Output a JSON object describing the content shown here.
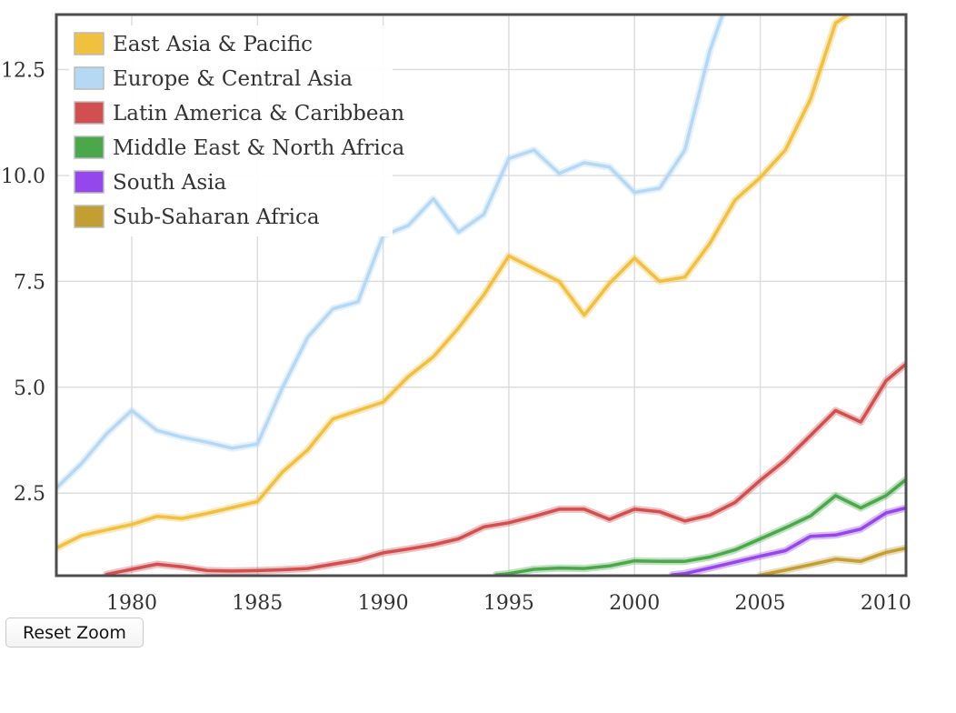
{
  "reset_zoom_label": "Reset Zoom",
  "chart_data": {
    "type": "line",
    "xlim": [
      1977,
      2010.8
    ],
    "ylim": [
      0.55,
      13.8
    ],
    "x_ticks": [
      1980,
      1985,
      1990,
      1995,
      2000,
      2005,
      2010
    ],
    "y_ticks": [
      2.5,
      5.0,
      7.5,
      10.0,
      12.5
    ],
    "y_tick_labels": [
      "2.5",
      "5.0",
      "7.5",
      "10.0",
      "12.5"
    ],
    "grid": true,
    "legend_position": "top-left",
    "series": [
      {
        "name": "East Asia & Pacific",
        "color": "#f1c03f",
        "points": [
          [
            1977,
            1.2
          ],
          [
            1978,
            1.5
          ],
          [
            1979,
            1.63
          ],
          [
            1980,
            1.76
          ],
          [
            1981,
            1.95
          ],
          [
            1982,
            1.9
          ],
          [
            1983,
            2.02
          ],
          [
            1984,
            2.16
          ],
          [
            1985,
            2.3
          ],
          [
            1986,
            3.0
          ],
          [
            1987,
            3.52
          ],
          [
            1988,
            4.25
          ],
          [
            1989,
            4.45
          ],
          [
            1990,
            4.65
          ],
          [
            1991,
            5.25
          ],
          [
            1992,
            5.72
          ],
          [
            1993,
            6.4
          ],
          [
            1994,
            7.18
          ],
          [
            1995,
            8.1
          ],
          [
            1996,
            7.8
          ],
          [
            1997,
            7.5
          ],
          [
            1998,
            6.7
          ],
          [
            1999,
            7.45
          ],
          [
            2000,
            8.05
          ],
          [
            2001,
            7.5
          ],
          [
            2002,
            7.6
          ],
          [
            2003,
            8.4
          ],
          [
            2004,
            9.42
          ],
          [
            2005,
            9.95
          ],
          [
            2006,
            10.6
          ],
          [
            2007,
            11.8
          ],
          [
            2008,
            13.6
          ],
          [
            2008.5,
            13.8
          ]
        ]
      },
      {
        "name": "Europe & Central Asia",
        "color": "#b5d8f5",
        "points": [
          [
            1977,
            2.62
          ],
          [
            1978,
            3.2
          ],
          [
            1979,
            3.9
          ],
          [
            1980,
            4.45
          ],
          [
            1981,
            3.98
          ],
          [
            1982,
            3.82
          ],
          [
            1983,
            3.7
          ],
          [
            1984,
            3.56
          ],
          [
            1985,
            3.66
          ],
          [
            1986,
            5.0
          ],
          [
            1987,
            6.18
          ],
          [
            1988,
            6.85
          ],
          [
            1989,
            7.02
          ],
          [
            1990,
            8.58
          ],
          [
            1991,
            8.82
          ],
          [
            1992,
            9.45
          ],
          [
            1993,
            8.66
          ],
          [
            1994,
            9.08
          ],
          [
            1995,
            10.4
          ],
          [
            1996,
            10.6
          ],
          [
            1997,
            10.05
          ],
          [
            1998,
            10.3
          ],
          [
            1999,
            10.2
          ],
          [
            2000,
            9.6
          ],
          [
            2001,
            9.7
          ],
          [
            2002,
            10.6
          ],
          [
            2003,
            12.95
          ],
          [
            2003.5,
            13.8
          ]
        ]
      },
      {
        "name": "Latin America & Caribbean",
        "color": "#d24f4f",
        "points": [
          [
            1979,
            0.58
          ],
          [
            1980,
            0.7
          ],
          [
            1981,
            0.82
          ],
          [
            1982,
            0.76
          ],
          [
            1983,
            0.67
          ],
          [
            1984,
            0.66
          ],
          [
            1985,
            0.67
          ],
          [
            1986,
            0.69
          ],
          [
            1987,
            0.72
          ],
          [
            1988,
            0.82
          ],
          [
            1989,
            0.92
          ],
          [
            1990,
            1.09
          ],
          [
            1991,
            1.18
          ],
          [
            1992,
            1.28
          ],
          [
            1993,
            1.42
          ],
          [
            1994,
            1.7
          ],
          [
            1995,
            1.8
          ],
          [
            1996,
            1.95
          ],
          [
            1997,
            2.12
          ],
          [
            1998,
            2.12
          ],
          [
            1999,
            1.88
          ],
          [
            2000,
            2.12
          ],
          [
            2001,
            2.06
          ],
          [
            2002,
            1.84
          ],
          [
            2003,
            1.98
          ],
          [
            2004,
            2.28
          ],
          [
            2005,
            2.8
          ],
          [
            2006,
            3.28
          ],
          [
            2007,
            3.86
          ],
          [
            2008,
            4.45
          ],
          [
            2009,
            4.18
          ],
          [
            2010,
            5.15
          ],
          [
            2010.8,
            5.55
          ]
        ]
      },
      {
        "name": "Middle East & North Africa",
        "color": "#4aa84a",
        "points": [
          [
            1994.5,
            0.57
          ],
          [
            1995,
            0.6
          ],
          [
            1996,
            0.7
          ],
          [
            1997,
            0.73
          ],
          [
            1998,
            0.72
          ],
          [
            1999,
            0.78
          ],
          [
            2000,
            0.9
          ],
          [
            2001,
            0.89
          ],
          [
            2002,
            0.89
          ],
          [
            2003,
            0.99
          ],
          [
            2004,
            1.16
          ],
          [
            2005,
            1.42
          ],
          [
            2006,
            1.68
          ],
          [
            2007,
            1.96
          ],
          [
            2008,
            2.44
          ],
          [
            2009,
            2.15
          ],
          [
            2010,
            2.44
          ],
          [
            2010.8,
            2.82
          ]
        ]
      },
      {
        "name": "South Asia",
        "color": "#9546ec",
        "points": [
          [
            2001.5,
            0.57
          ],
          [
            2002,
            0.6
          ],
          [
            2003,
            0.73
          ],
          [
            2004,
            0.87
          ],
          [
            2005,
            1.01
          ],
          [
            2006,
            1.14
          ],
          [
            2007,
            1.48
          ],
          [
            2008,
            1.51
          ],
          [
            2009,
            1.65
          ],
          [
            2010,
            2.03
          ],
          [
            2010.8,
            2.15
          ]
        ]
      },
      {
        "name": "Sub-Saharan Africa",
        "color": "#c29f33",
        "points": [
          [
            2005,
            0.56
          ],
          [
            2006,
            0.68
          ],
          [
            2007,
            0.81
          ],
          [
            2008,
            0.94
          ],
          [
            2009,
            0.89
          ],
          [
            2010,
            1.1
          ],
          [
            2010.8,
            1.2
          ]
        ]
      }
    ]
  }
}
